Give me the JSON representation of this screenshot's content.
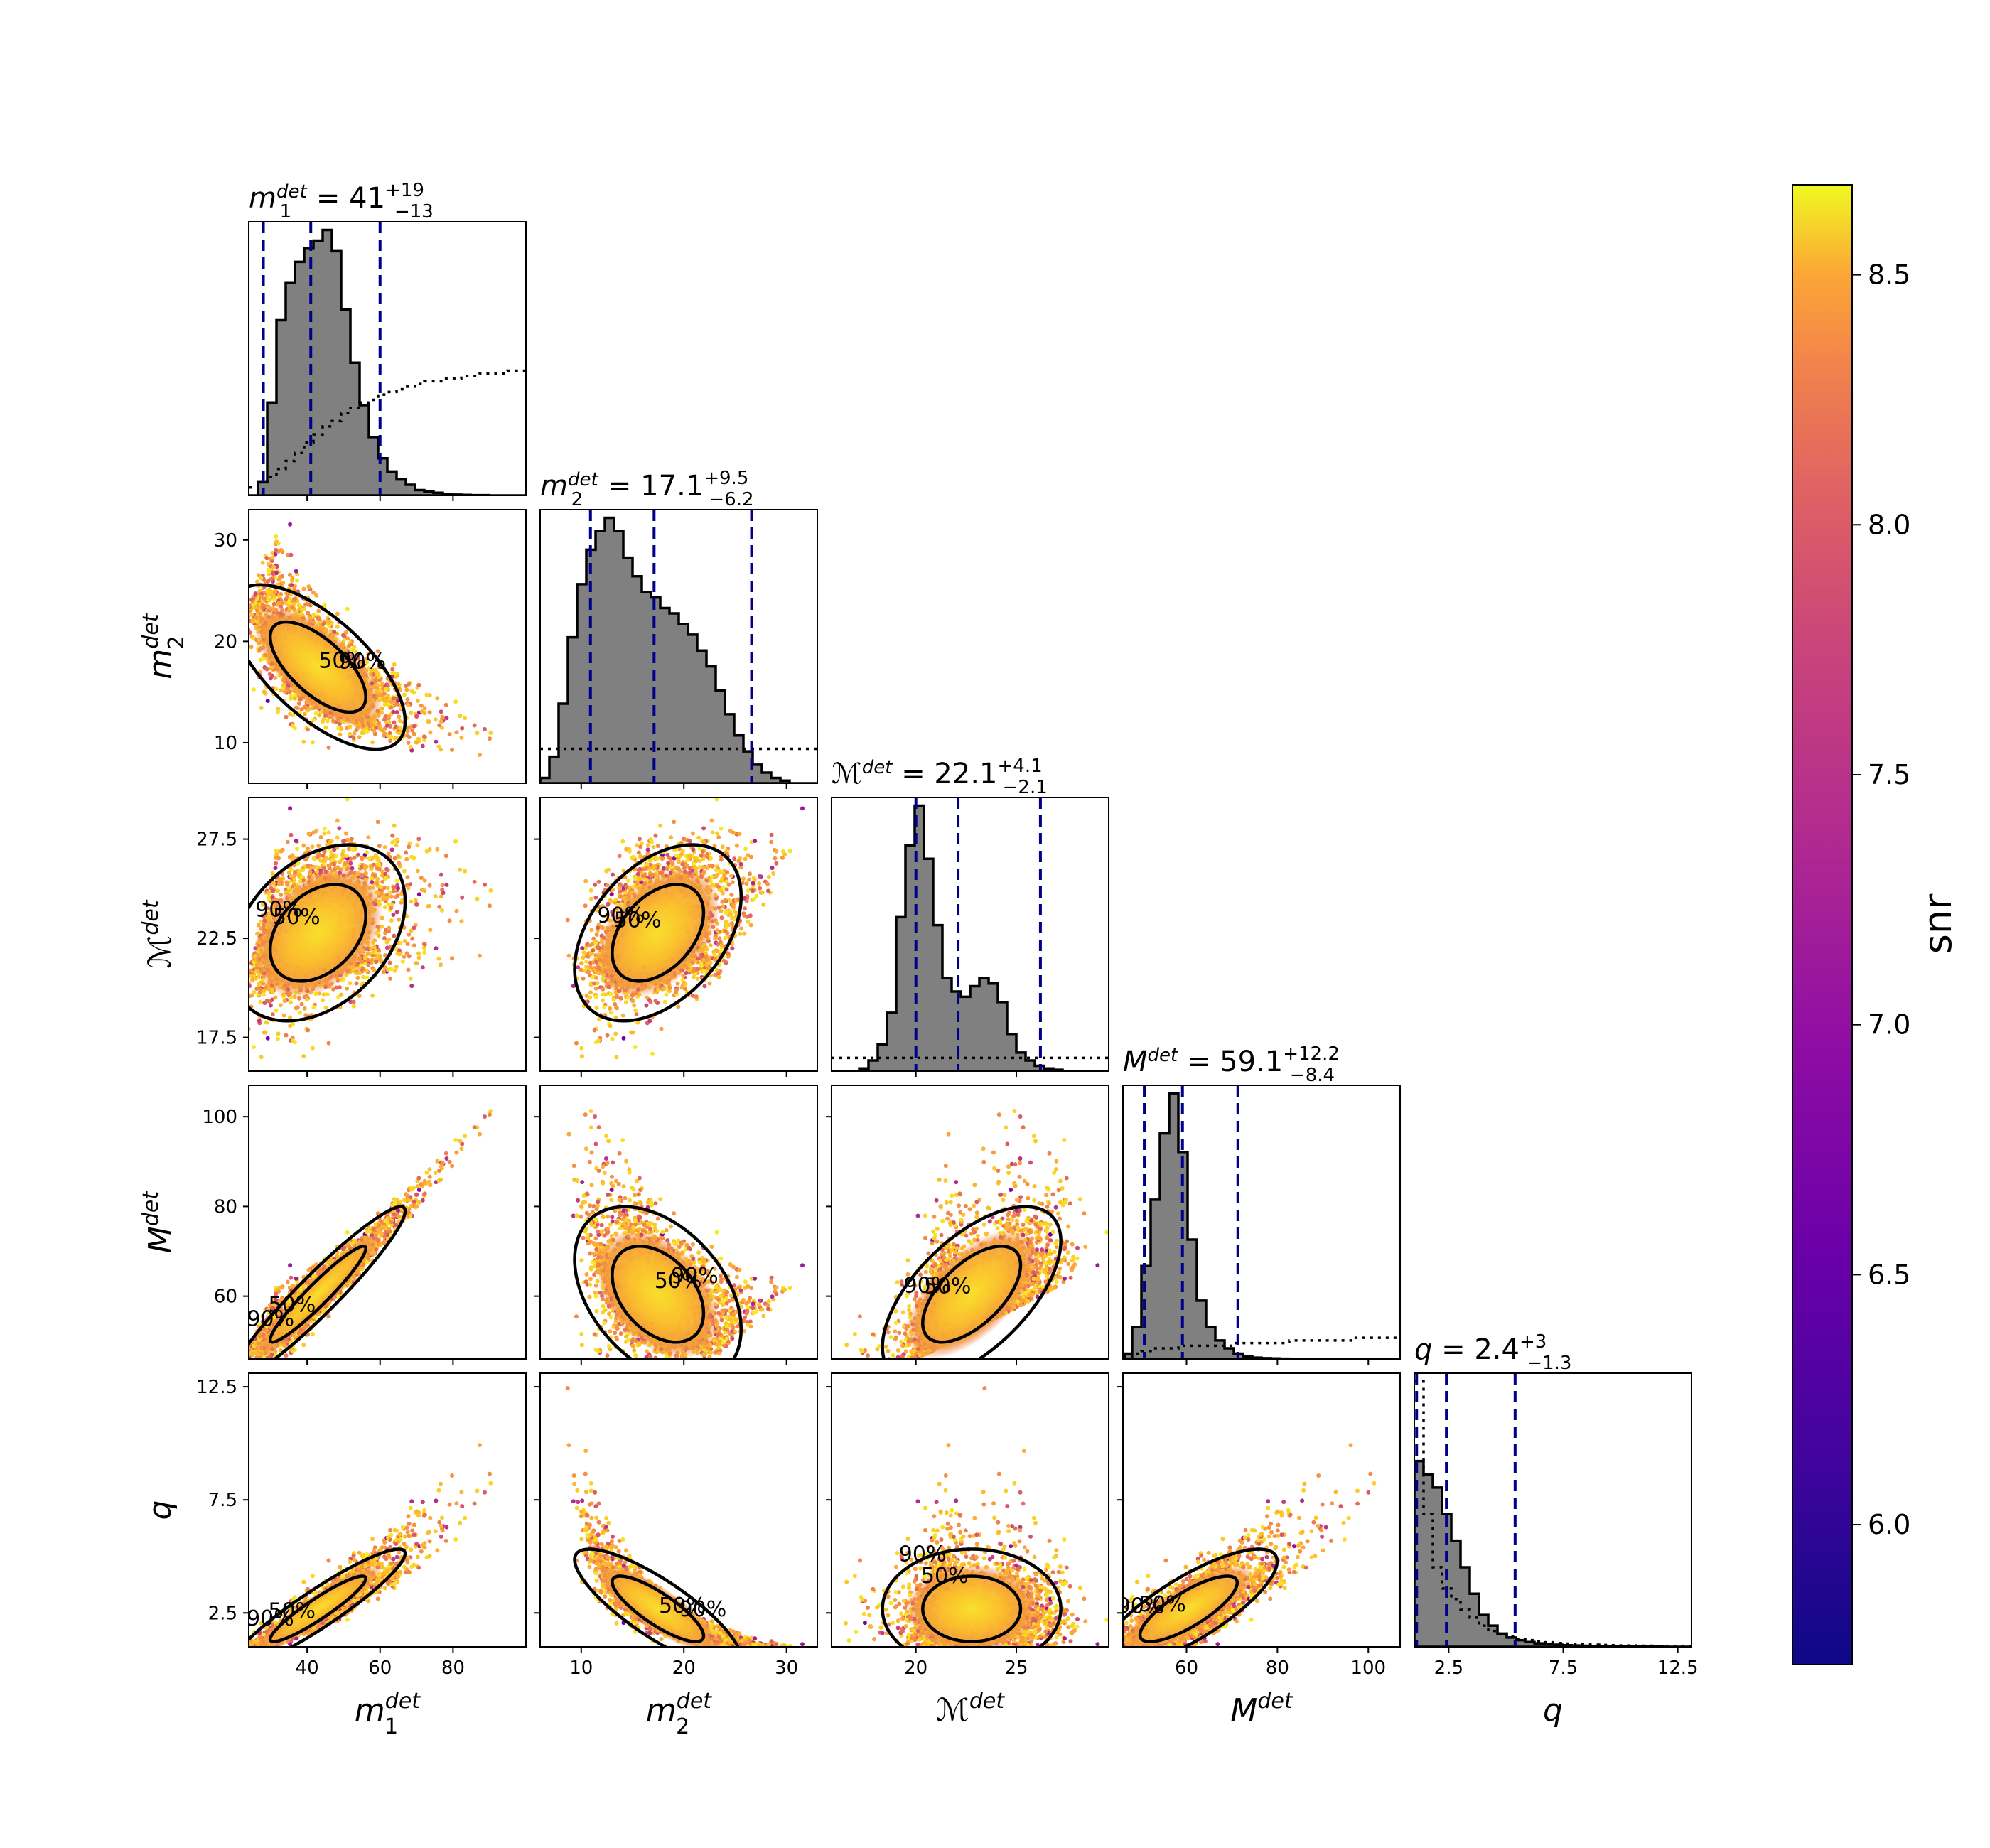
{
  "chart_data": {
    "type": "corner",
    "parameters": [
      {
        "key": "m1",
        "label": "m1det",
        "label_base": "m",
        "label_sub": "1",
        "label_sup": "det",
        "title": {
          "median": "41",
          "plus": "+19",
          "minus": "−13"
        },
        "range": [
          24,
          100
        ],
        "ticks": [
          40,
          60,
          80
        ],
        "quantiles": [
          28,
          41,
          60
        ]
      },
      {
        "key": "m2",
        "label": "m2det",
        "label_base": "m",
        "label_sub": "2",
        "label_sup": "det",
        "title": {
          "median": "17.1",
          "plus": "+9.5",
          "minus": "−6.2"
        },
        "range": [
          6,
          33
        ],
        "ticks": [
          10,
          20,
          30
        ],
        "quantiles": [
          10.9,
          17.1,
          26.6
        ]
      },
      {
        "key": "mc",
        "label": "ℳdet",
        "label_base": "ℳ",
        "label_sub": "",
        "label_sup": "det",
        "title": {
          "median": "22.1",
          "plus": "+4.1",
          "minus": "−2.1"
        },
        "range": [
          15.8,
          29.6
        ],
        "ticks": [
          20,
          25
        ],
        "quantiles": [
          20.0,
          22.1,
          26.2
        ]
      },
      {
        "key": "mt",
        "label": "Mdet",
        "label_base": "M",
        "label_sub": "",
        "label_sup": "det",
        "title": {
          "median": "59.1",
          "plus": "+12.2",
          "minus": "−8.4"
        },
        "range": [
          46,
          107
        ],
        "ticks": [
          60,
          80,
          100
        ],
        "quantiles": [
          50.7,
          59.1,
          71.3
        ]
      },
      {
        "key": "q",
        "label": "q",
        "label_base": "q",
        "label_sub": "",
        "label_sup": "",
        "title": {
          "median": "2.4",
          "plus": "+3",
          "minus": "−1.3"
        },
        "range": [
          1.0,
          13.1
        ],
        "ticks": [
          2.5,
          7.5,
          12.5
        ],
        "quantiles": [
          1.1,
          2.4,
          5.4
        ]
      }
    ],
    "row_tick_labels": {
      "m2": [
        "10",
        "20",
        "30"
      ],
      "mc": [
        "17.5",
        "22.5",
        "27.5"
      ],
      "mt": [
        "60",
        "80",
        "100"
      ],
      "q": [
        "2.5",
        "7.5",
        "12.5"
      ]
    },
    "row_tick_values": {
      "m2": [
        10,
        20,
        30
      ],
      "mc": [
        17.5,
        22.5,
        27.5
      ],
      "mt": [
        60,
        80,
        100
      ],
      "q": [
        2.5,
        7.5,
        12.5
      ]
    },
    "col_tick_labels": {
      "m1": [
        "40",
        "60",
        "80"
      ],
      "m2": [
        "10",
        "20",
        "30"
      ],
      "mc": [
        "20",
        "25"
      ],
      "mt": [
        "60",
        "80",
        "100"
      ],
      "q": [
        "2.5",
        "7.5",
        "12.5"
      ]
    },
    "contour_levels": [
      "50%",
      "90%"
    ],
    "colorbar": {
      "label": "snr",
      "range": [
        5.72,
        8.68
      ],
      "ticks": [
        "6.0",
        "6.5",
        "7.0",
        "7.5",
        "8.0",
        "8.5"
      ],
      "tick_values": [
        6.0,
        6.5,
        7.0,
        7.5,
        8.0,
        8.5
      ],
      "colormap": "plasma"
    },
    "colors": {
      "histogram_fill": "#808080",
      "histogram_edge": "#000000",
      "quantile_lines": "#00008b",
      "prior_line": "#000000",
      "contours": "#000000"
    },
    "histograms": {
      "m1": {
        "posterior": [
          0,
          0.05,
          0.35,
          0.66,
          0.8,
          0.88,
          0.93,
          0.96,
          1.0,
          0.92,
          0.7,
          0.5,
          0.34,
          0.22,
          0.14,
          0.09,
          0.06,
          0.04,
          0.02,
          0.015,
          0.01,
          0.005,
          0.003,
          0.002,
          0.001,
          0.001,
          0,
          0,
          0,
          0
        ],
        "prior": [
          0.03,
          0.05,
          0.07,
          0.1,
          0.13,
          0.16,
          0.2,
          0.23,
          0.26,
          0.28,
          0.31,
          0.33,
          0.35,
          0.36,
          0.38,
          0.39,
          0.4,
          0.41,
          0.42,
          0.43,
          0.43,
          0.44,
          0.44,
          0.45,
          0.45,
          0.46,
          0.46,
          0.46,
          0.47,
          0.47
        ]
      },
      "m2": {
        "posterior": [
          0.02,
          0.1,
          0.3,
          0.55,
          0.75,
          0.88,
          0.95,
          1.0,
          0.95,
          0.85,
          0.78,
          0.72,
          0.7,
          0.66,
          0.64,
          0.6,
          0.56,
          0.5,
          0.44,
          0.35,
          0.26,
          0.18,
          0.12,
          0.07,
          0.04,
          0.02,
          0.01,
          0,
          0,
          0
        ],
        "prior": [
          0.13,
          0.13,
          0.13,
          0.13,
          0.13,
          0.13,
          0.13,
          0.13,
          0.13,
          0.13,
          0.13,
          0.13,
          0.13,
          0.13,
          0.13,
          0.13,
          0.13,
          0.13,
          0.13,
          0.13,
          0.13,
          0.13,
          0.13,
          0.13,
          0.13,
          0.13,
          0.13,
          0.13,
          0.13,
          0.13
        ]
      },
      "mc": {
        "posterior": [
          0,
          0,
          0,
          0.01,
          0.04,
          0.1,
          0.22,
          0.58,
          0.85,
          1.0,
          0.8,
          0.55,
          0.35,
          0.3,
          0.28,
          0.32,
          0.35,
          0.33,
          0.26,
          0.14,
          0.07,
          0.04,
          0.02,
          0.01,
          0.005,
          0,
          0,
          0,
          0,
          0
        ],
        "prior": [
          0.05,
          0.05,
          0.05,
          0.05,
          0.05,
          0.05,
          0.05,
          0.05,
          0.05,
          0.05,
          0.05,
          0.05,
          0.05,
          0.05,
          0.05,
          0.05,
          0.05,
          0.05,
          0.05,
          0.05,
          0.05,
          0.05,
          0.05,
          0.05,
          0.05,
          0.05,
          0.05,
          0.05,
          0.05,
          0.05
        ]
      },
      "mt": {
        "posterior": [
          0.02,
          0.12,
          0.35,
          0.6,
          0.85,
          1.0,
          0.78,
          0.45,
          0.22,
          0.12,
          0.07,
          0.04,
          0.02,
          0.01,
          0.005,
          0.003,
          0.002,
          0.001,
          0,
          0,
          0,
          0,
          0,
          0,
          0,
          0,
          0,
          0,
          0,
          0
        ],
        "prior": [
          0.01,
          0.02,
          0.03,
          0.04,
          0.04,
          0.04,
          0.05,
          0.05,
          0.05,
          0.05,
          0.05,
          0.05,
          0.06,
          0.06,
          0.06,
          0.06,
          0.06,
          0.06,
          0.07,
          0.07,
          0.07,
          0.07,
          0.07,
          0.07,
          0.07,
          0.08,
          0.08,
          0.08,
          0.08,
          0.08
        ]
      },
      "q": {
        "posterior": [
          0.7,
          0.65,
          0.6,
          0.5,
          0.4,
          0.3,
          0.2,
          0.12,
          0.08,
          0.05,
          0.035,
          0.025,
          0.018,
          0.013,
          0.01,
          0.008,
          0.006,
          0.005,
          0.004,
          0.003,
          0.002,
          0.002,
          0.001,
          0.001,
          0.001,
          0.001,
          0.001,
          0,
          0,
          0
        ],
        "prior": [
          1.0,
          0.5,
          0.3,
          0.22,
          0.18,
          0.14,
          0.11,
          0.08,
          0.06,
          0.05,
          0.04,
          0.03,
          0.025,
          0.02,
          0.017,
          0.014,
          0.012,
          0.01,
          0.009,
          0.008,
          0.007,
          0.006,
          0.005,
          0.005,
          0.004,
          0.004,
          0.003,
          0.003,
          0.003,
          0.003
        ]
      }
    }
  }
}
